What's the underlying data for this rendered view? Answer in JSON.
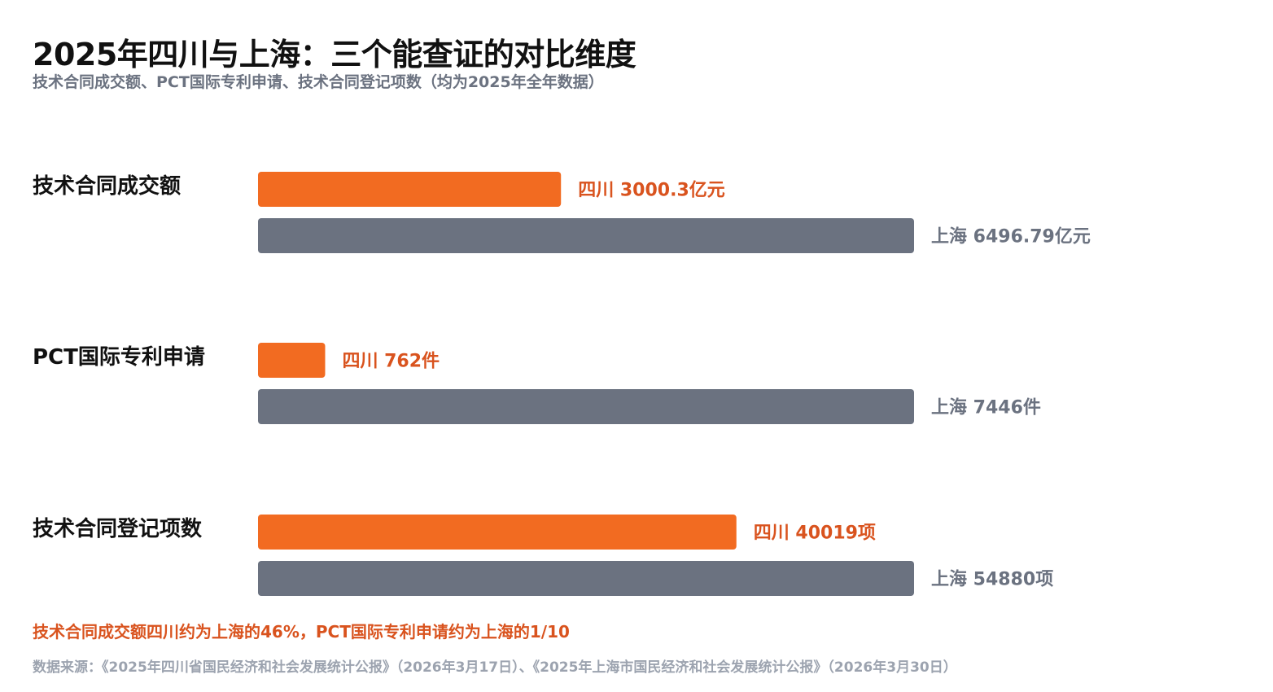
{
  "title": "2025年四川与上海：三个能查证的对比维度",
  "subtitle": "技术合同成交额、PCT国际专利申请、技术合同登记项数（均为2025年全年数据）",
  "note": "技术合同成交额四川约为上海的46%，PCT国际专利申请约为上海的1/10",
  "source": "数据来源：《2025年四川省国民经济和社会发展统计公报》（2026年3月17日）、《2025年上海市国民经济和社会发展统计公报》（2026年3月30日）",
  "colors": {
    "sichuan_bar": "#f26b21",
    "sichuan_label": "#d9531e",
    "shanghai_bar": "#6b7280",
    "shanghai_label": "#6b7280"
  },
  "chart_data": {
    "type": "bar",
    "orientation": "horizontal",
    "scaling": "each category scaled to its own maximum",
    "categories": [
      "技术合同成交额",
      "PCT国际专利申请",
      "技术合同登记项数"
    ],
    "series": [
      {
        "name": "四川",
        "values": [
          3000.3,
          762,
          40019
        ],
        "labels": [
          "四川 3000.3亿元",
          "四川 762件",
          "四川 40019项"
        ]
      },
      {
        "name": "上海",
        "values": [
          6496.79,
          7446,
          54880
        ],
        "labels": [
          "上海 6496.79亿元",
          "上海 7446件",
          "上海 54880项"
        ]
      }
    ],
    "units": [
      "亿元",
      "件",
      "项"
    ],
    "grid": false,
    "legend": "none"
  }
}
